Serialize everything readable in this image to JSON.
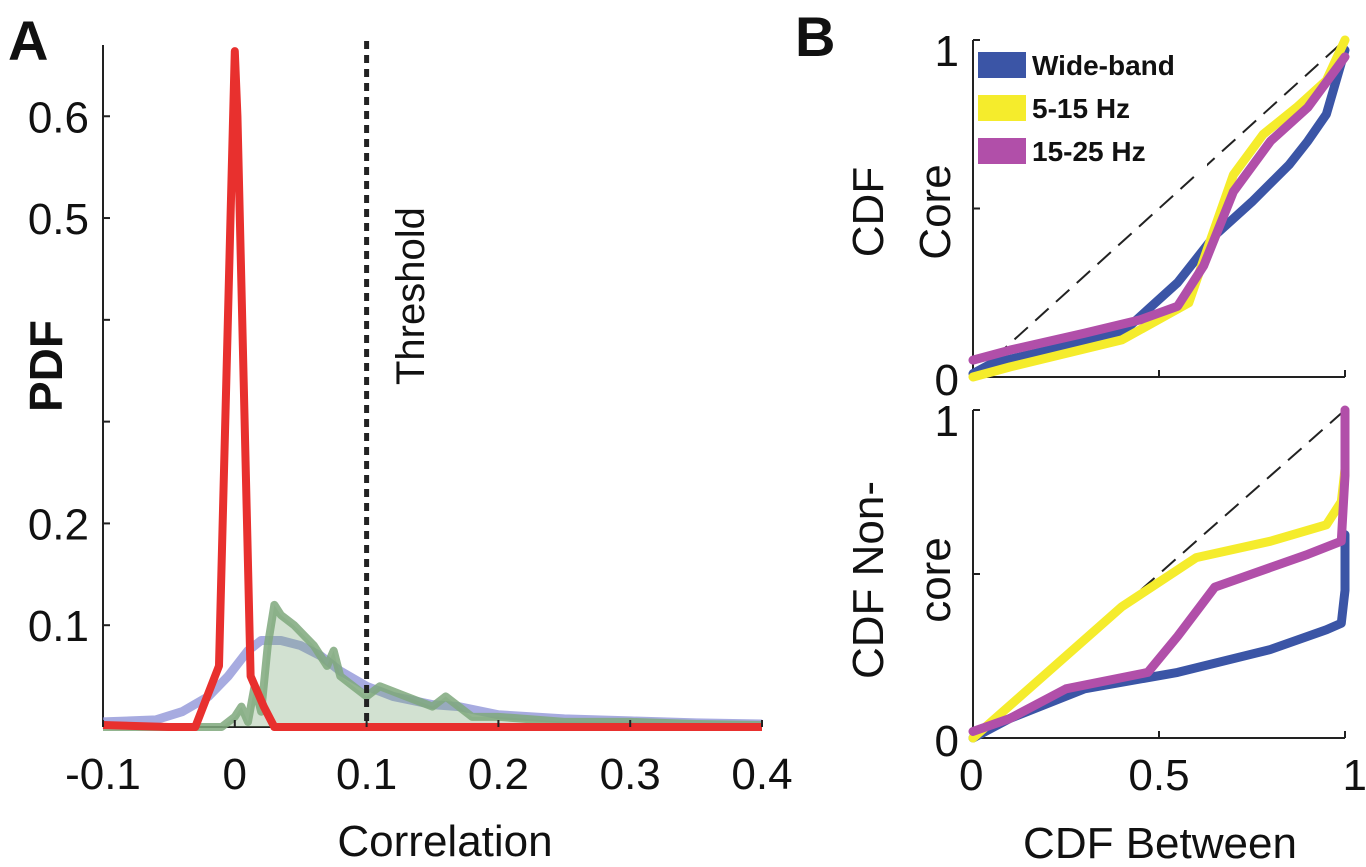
{
  "chart_data": [
    {
      "panel": "A",
      "type": "line",
      "xlabel": "Correlation",
      "ylabel": "PDF",
      "xlim": [
        -0.1,
        0.4
      ],
      "ylim": [
        0,
        0.67
      ],
      "xticks": [
        -0.1,
        0,
        0.1,
        0.2,
        0.3,
        0.4
      ],
      "xtick_labels": [
        "-0.1",
        "0",
        "0.1",
        "0.2",
        "0.3",
        "0.4"
      ],
      "yticks": [
        0.1,
        0.2,
        0.5,
        0.6
      ],
      "ytick_labels": [
        "0.1",
        "0.2",
        "0.5",
        "0.6"
      ],
      "grid": false,
      "threshold": {
        "x": 0.1,
        "label": "Threshold"
      },
      "series": [
        {
          "color": "#e8302e",
          "x": [
            -0.1,
            -0.05,
            -0.03,
            -0.012,
            0.0,
            0.002,
            0.012,
            0.022,
            0.03,
            0.06,
            0.1,
            0.2,
            0.3,
            0.4
          ],
          "y": [
            0.002,
            0.0,
            0.0,
            0.06,
            0.664,
            0.6,
            0.05,
            0.02,
            0.0,
            0.0,
            0.0,
            0.0,
            0.0,
            0.0
          ]
        },
        {
          "color": "#8a8fd6",
          "x": [
            -0.1,
            -0.06,
            -0.04,
            -0.02,
            -0.005,
            0.01,
            0.02,
            0.035,
            0.05,
            0.065,
            0.08,
            0.1,
            0.12,
            0.15,
            0.17,
            0.2,
            0.25,
            0.3,
            0.35,
            0.4
          ],
          "y": [
            0.005,
            0.007,
            0.015,
            0.03,
            0.05,
            0.075,
            0.085,
            0.085,
            0.08,
            0.07,
            0.055,
            0.04,
            0.03,
            0.022,
            0.02,
            0.012,
            0.008,
            0.006,
            0.004,
            0.003
          ]
        },
        {
          "color": "#7fa87c",
          "x": [
            -0.1,
            -0.01,
            0.0,
            0.005,
            0.01,
            0.015,
            0.02,
            0.025,
            0.03,
            0.035,
            0.045,
            0.06,
            0.07,
            0.075,
            0.08,
            0.09,
            0.1,
            0.11,
            0.13,
            0.15,
            0.16,
            0.18,
            0.2,
            0.25,
            0.3,
            0.35,
            0.4
          ],
          "y": [
            0.0,
            0.0,
            0.01,
            0.02,
            0.005,
            0.04,
            0.015,
            0.08,
            0.12,
            0.11,
            0.1,
            0.08,
            0.06,
            0.075,
            0.05,
            0.04,
            0.03,
            0.04,
            0.03,
            0.02,
            0.03,
            0.01,
            0.01,
            0.005,
            0.005,
            0.003,
            0.002
          ]
        }
      ]
    },
    {
      "panel": "B",
      "type": "line",
      "ylabel": "CDF Core",
      "xlim": [
        0,
        1
      ],
      "ylim": [
        0,
        1
      ],
      "yticks": [
        0,
        1
      ],
      "ytick_labels": [
        "0",
        "1"
      ],
      "grid": false,
      "legend_position": "top-left",
      "series": [
        {
          "name": "Wide-band",
          "color": "#3b55a6",
          "x": [
            0,
            0.05,
            0.4,
            0.55,
            0.65,
            0.75,
            0.85,
            0.9,
            0.95,
            1.0
          ],
          "y": [
            0.01,
            0.04,
            0.13,
            0.28,
            0.42,
            0.52,
            0.63,
            0.7,
            0.78,
            0.97
          ]
        },
        {
          "name": "5-15 Hz",
          "color": "#f5ec2c",
          "x": [
            0,
            0.1,
            0.4,
            0.58,
            0.63,
            0.7,
            0.78,
            0.87,
            0.95,
            1.0
          ],
          "y": [
            0.0,
            0.03,
            0.11,
            0.22,
            0.38,
            0.6,
            0.72,
            0.8,
            0.88,
            1.0
          ]
        },
        {
          "name": "15-25 Hz",
          "color": "#b14fa9",
          "x": [
            0,
            0.1,
            0.3,
            0.45,
            0.55,
            0.62,
            0.7,
            0.8,
            0.9,
            1.0
          ],
          "y": [
            0.05,
            0.08,
            0.13,
            0.17,
            0.21,
            0.33,
            0.55,
            0.7,
            0.8,
            0.95
          ]
        }
      ]
    },
    {
      "panel": "B",
      "type": "line",
      "xlabel": "CDF Between",
      "ylabel": "CDF Non-core",
      "xlim": [
        0,
        1
      ],
      "ylim": [
        0,
        1
      ],
      "xticks": [
        0,
        0.5,
        1
      ],
      "xtick_labels": [
        "0",
        "0.5",
        "1"
      ],
      "yticks": [
        0,
        1
      ],
      "ytick_labels": [
        "0",
        "1"
      ],
      "grid": false,
      "series": [
        {
          "name": "Wide-band",
          "color": "#3b55a6",
          "x": [
            0,
            0.1,
            0.3,
            0.55,
            0.8,
            0.95,
            0.99,
            1.0,
            1.0
          ],
          "y": [
            0.0,
            0.06,
            0.15,
            0.2,
            0.27,
            0.33,
            0.35,
            0.45,
            0.62
          ]
        },
        {
          "name": "5-15 Hz",
          "color": "#f5ec2c",
          "x": [
            0,
            0.1,
            0.4,
            0.6,
            0.8,
            0.95,
            0.99,
            1.0
          ],
          "y": [
            0.0,
            0.1,
            0.4,
            0.55,
            0.6,
            0.65,
            0.72,
            0.82
          ]
        },
        {
          "name": "15-25 Hz",
          "color": "#b14fa9",
          "x": [
            0,
            0.1,
            0.25,
            0.47,
            0.55,
            0.65,
            0.75,
            0.9,
            0.99,
            1.0,
            1.0
          ],
          "y": [
            0.02,
            0.06,
            0.15,
            0.2,
            0.31,
            0.46,
            0.5,
            0.56,
            0.6,
            0.8,
            1.0
          ]
        }
      ]
    }
  ],
  "labels": {
    "panel_a": "A",
    "panel_b": "B",
    "pdf_ylabel": "PDF",
    "corr_xlabel": "Correlation",
    "threshold": "Threshold",
    "core_ylabel_line1": "CDF",
    "core_ylabel_line2": "Core",
    "noncore_ylabel_line1": "CDF Non-",
    "noncore_ylabel_line2": "core",
    "between_xlabel": "CDF Between"
  },
  "legend": [
    {
      "label": "Wide-band",
      "color": "#3b55a6"
    },
    {
      "label": "5-15 Hz",
      "color": "#f5ec2c"
    },
    {
      "label": "15-25 Hz",
      "color": "#b14fa9"
    }
  ]
}
